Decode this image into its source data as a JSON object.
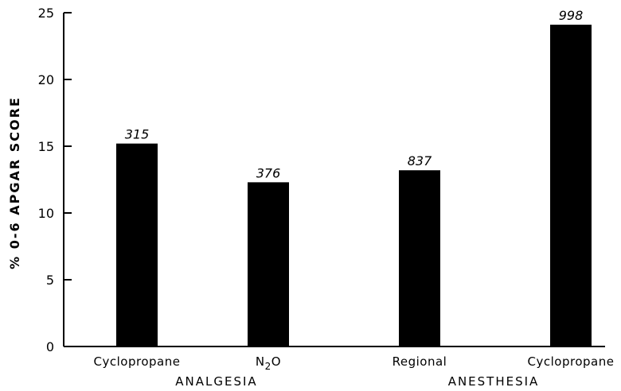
{
  "chart_data": {
    "type": "bar",
    "title": "",
    "xlabel": "",
    "ylabel": "% 0-6 APGAR SCORE",
    "ylim": [
      0,
      25
    ],
    "yticks": [
      0,
      5,
      10,
      15,
      20,
      25
    ],
    "categories": [
      "Cyclopropane",
      "N2O",
      "Regional",
      "Cyclopropane"
    ],
    "values": [
      15.2,
      12.3,
      13.2,
      24.1
    ],
    "data_labels": [
      "315",
      "376",
      "837",
      "998"
    ],
    "groups": [
      {
        "label": "ANALGESIA",
        "categories": [
          0,
          1
        ]
      },
      {
        "label": "ANESTHESIA",
        "categories": [
          2,
          3
        ]
      }
    ],
    "bar_color": "#000000",
    "grid": false,
    "legend": "none"
  }
}
